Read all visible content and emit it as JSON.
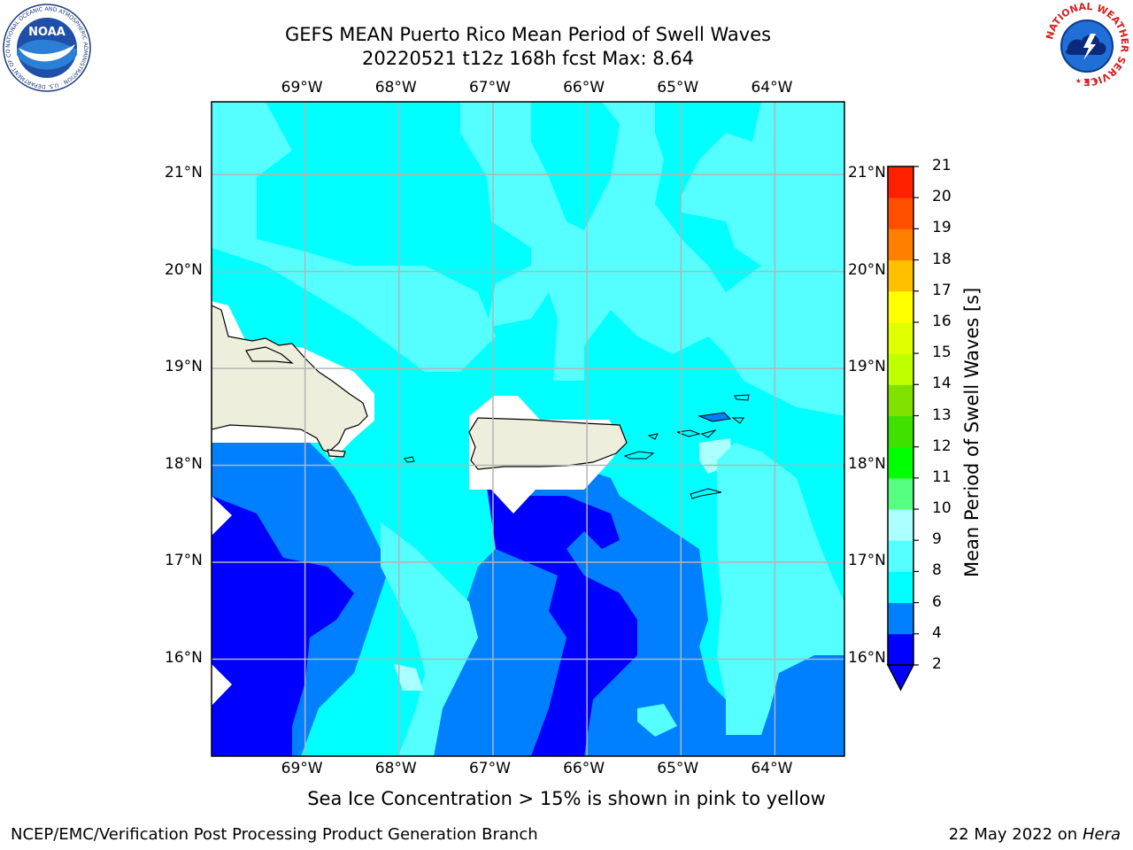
{
  "title": {
    "line1": "GEFS MEAN Puerto Rico Mean Period of Swell Waves",
    "line2": "20220521 t12z 168h fcst   Max: 8.64"
  },
  "map": {
    "lon_labels": [
      "69°W",
      "68°W",
      "67°W",
      "66°W",
      "65°W",
      "64°W"
    ],
    "lat_labels": [
      "21°N",
      "20°N",
      "19°N",
      "18°N",
      "17°N",
      "16°N"
    ],
    "extent": {
      "lon": [
        -69.995,
        -63.26
      ],
      "lat": [
        15.0,
        21.75
      ]
    },
    "land_color": "#eeeedc",
    "grid_color": "#b4b4b4"
  },
  "colorbar": {
    "label": "Mean Period of Swell Waves [s]",
    "ticks": [
      "2",
      "4",
      "6",
      "8",
      "9",
      "10",
      "11",
      "12",
      "13",
      "14",
      "15",
      "16",
      "17",
      "18",
      "19",
      "20",
      "21"
    ],
    "colors": [
      "#0000ff",
      "#0080ff",
      "#00ffff",
      "#55ffff",
      "#aaffff",
      "#55ff80",
      "#00ff00",
      "#40e000",
      "#80e000",
      "#c0ff00",
      "#e0ff00",
      "#ffff00",
      "#ffc000",
      "#ff8000",
      "#ff5000",
      "#ff2000",
      "#ff0000"
    ],
    "under_color": "#0000ff"
  },
  "note": "Sea Ice Concentration > 15% is shown in pink to yellow",
  "footer": {
    "left": "NCEP/EMC/Verification Post Processing Product Generation Branch",
    "right_date": "22 May 2022 on",
    "right_host": "Hera"
  },
  "logos": {
    "noaa_text": "NOAA",
    "noaa_ring": "NATIONAL OCEANIC AND ATMOSPHERIC ADMINISTRATION · U.S. DEPARTMENT OF COMMERCE",
    "nws_ring": "NATIONAL WEATHER SERVICE"
  }
}
